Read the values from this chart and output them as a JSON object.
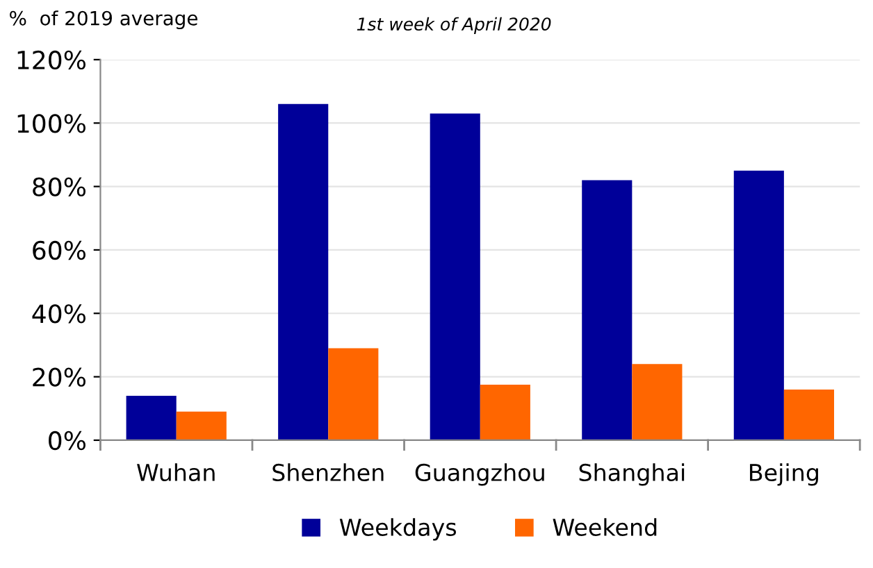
{
  "chart_data": {
    "type": "bar",
    "title": "1st week of April 2020",
    "ylabel": "%  of 2019 average",
    "categories": [
      "Wuhan",
      "Shenzhen",
      "Guangzhou",
      "Shanghai",
      "Bejing"
    ],
    "series": [
      {
        "name": "Weekdays",
        "color": "#000099",
        "values": [
          14,
          106,
          103,
          82,
          85
        ]
      },
      {
        "name": "Weekend",
        "color": "#ff6600",
        "values": [
          9,
          29,
          17.5,
          24,
          16
        ]
      }
    ],
    "ylim": [
      0,
      120
    ],
    "yticks": [
      {
        "value": 0,
        "label": "0%"
      },
      {
        "value": 20,
        "label": "20%"
      },
      {
        "value": 40,
        "label": "40%"
      },
      {
        "value": 60,
        "label": "60%"
      },
      {
        "value": 80,
        "label": "80%"
      },
      {
        "value": 100,
        "label": "100%"
      },
      {
        "value": 120,
        "label": "120%"
      }
    ],
    "grid": "y",
    "legend": "bottom"
  }
}
